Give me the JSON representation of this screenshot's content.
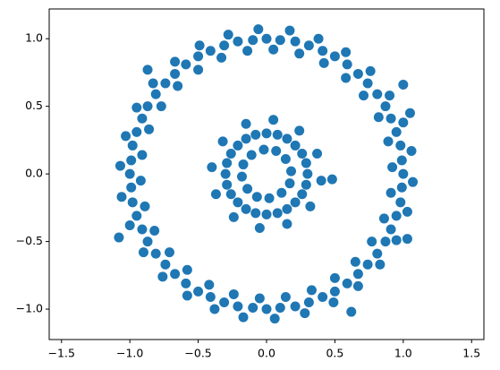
{
  "chart_data": {
    "type": "scatter",
    "color": "#1f77b4",
    "x": [
      1,
      0.99,
      0.98,
      0.95,
      0.91,
      0.87,
      0.81,
      0.74,
      0.67,
      0.59,
      0.5,
      0.41,
      0.31,
      0.21,
      0.1,
      0,
      -0.1,
      -0.21,
      -0.31,
      -0.41,
      -0.5,
      -0.59,
      -0.67,
      -0.74,
      -0.81,
      -0.87,
      -0.91,
      -0.95,
      -0.98,
      -0.99,
      -1,
      -0.99,
      -0.98,
      -0.95,
      -0.91,
      -0.87,
      -0.81,
      -0.74,
      -0.67,
      -0.59,
      -0.5,
      -0.41,
      -0.31,
      -0.21,
      -0.1,
      0,
      0.1,
      0.21,
      0.31,
      0.41,
      0.5,
      0.59,
      0.67,
      0.74,
      0.81,
      0.87,
      0.91,
      0.95,
      0.98,
      0.99,
      0.92,
      1.06,
      0.89,
      1.0,
      0.82,
      0.9,
      0.71,
      0.76,
      0.58,
      0.58,
      0.42,
      0.38,
      0.24,
      0.17,
      0.05,
      -0.06,
      -0.14,
      -0.28,
      -0.33,
      -0.49,
      -0.5,
      -0.67,
      -0.65,
      -0.83,
      -0.77,
      -0.95,
      -0.86,
      -1.03,
      -0.91,
      -1.07,
      -0.92,
      -1.06,
      -0.89,
      -1.0,
      -0.82,
      -0.9,
      -0.71,
      -0.76,
      -0.58,
      -0.58,
      -0.42,
      -0.38,
      -0.24,
      -0.17,
      -0.05,
      0.06,
      0.14,
      0.28,
      0.33,
      0.49,
      0.5,
      0.67,
      0.65,
      0.83,
      0.77,
      0.95,
      0.86,
      1.03,
      0.91,
      1.07,
      -1.08,
      1.0,
      0.62,
      1.03,
      -0.87,
      1.05,
      0.48,
      0.3,
      0.29,
      0.26,
      0.21,
      0.15,
      0.08,
      0,
      -0.08,
      -0.15,
      -0.21,
      -0.26,
      -0.29,
      -0.3,
      -0.29,
      -0.26,
      -0.21,
      -0.15,
      -0.08,
      0,
      0.08,
      0.15,
      0.21,
      0.26,
      0.29,
      0.18,
      0.37,
      0.14,
      0.24,
      0.07,
      0.05,
      -0.02,
      -0.15,
      -0.11,
      -0.32,
      -0.17,
      -0.4,
      -0.18,
      -0.37,
      -0.14,
      -0.24,
      -0.07,
      -0.05,
      0.02,
      0.15,
      0.11,
      0.32,
      0.17,
      0.4
    ],
    "y": [
      0,
      0.1,
      0.21,
      0.31,
      0.41,
      0.5,
      0.59,
      0.67,
      0.74,
      0.81,
      0.87,
      0.91,
      0.95,
      0.98,
      0.99,
      1,
      0.99,
      0.98,
      0.95,
      0.91,
      0.87,
      0.81,
      0.74,
      0.67,
      0.59,
      0.5,
      0.41,
      0.31,
      0.21,
      0.1,
      0,
      -0.1,
      -0.21,
      -0.31,
      -0.41,
      -0.5,
      -0.59,
      -0.67,
      -0.74,
      -0.81,
      -0.87,
      -0.91,
      -0.95,
      -0.98,
      -0.99,
      -1,
      -0.99,
      -0.98,
      -0.95,
      -0.91,
      -0.87,
      -0.81,
      -0.74,
      -0.67,
      -0.59,
      -0.5,
      -0.41,
      -0.31,
      -0.21,
      -0.1,
      0.05,
      0.17,
      0.24,
      0.38,
      0.42,
      0.58,
      0.58,
      0.76,
      0.71,
      0.9,
      0.82,
      1.0,
      0.89,
      1.06,
      0.92,
      1.07,
      0.91,
      1.03,
      0.86,
      0.95,
      0.77,
      0.83,
      0.65,
      0.67,
      0.5,
      0.49,
      0.33,
      0.28,
      0.14,
      0.06,
      -0.05,
      -0.17,
      -0.24,
      -0.38,
      -0.42,
      -0.58,
      -0.58,
      -0.76,
      -0.71,
      -0.9,
      -0.82,
      -1.0,
      -0.89,
      -1.06,
      -0.92,
      -1.07,
      -0.91,
      -1.03,
      -0.86,
      -0.95,
      -0.77,
      -0.83,
      -0.65,
      -0.67,
      -0.5,
      -0.49,
      -0.33,
      -0.28,
      -0.14,
      -0.06,
      -0.47,
      0.66,
      -1.02,
      -0.48,
      0.77,
      0.45,
      -0.04,
      0,
      0.08,
      0.15,
      0.21,
      0.26,
      0.29,
      0.3,
      0.29,
      0.26,
      0.21,
      0.15,
      0.08,
      0,
      -0.08,
      -0.15,
      -0.21,
      -0.26,
      -0.29,
      -0.3,
      -0.29,
      -0.26,
      -0.21,
      -0.15,
      -0.08,
      0.02,
      0.15,
      0.11,
      0.32,
      0.17,
      0.4,
      0.18,
      0.37,
      0.14,
      0.24,
      0.07,
      0.05,
      -0.02,
      -0.15,
      -0.11,
      -0.32,
      -0.17,
      -0.4,
      -0.18,
      -0.37,
      -0.14,
      -0.24,
      -0.07,
      -0.05
    ],
    "xlim": [
      -1.59,
      1.59
    ],
    "ylim": [
      -1.225,
      1.22
    ],
    "xticks": [
      {
        "value": -1.5,
        "label": "−1.5"
      },
      {
        "value": -1.0,
        "label": "−1.0"
      },
      {
        "value": -0.5,
        "label": "−0.5"
      },
      {
        "value": 0,
        "label": "0.0"
      },
      0.5,
      {
        "value": 1,
        "label": "1.0"
      },
      1.5
    ],
    "yticks": [
      {
        "value": -1.0,
        "label": "−1.0"
      },
      {
        "value": -0.5,
        "label": "−0.5"
      },
      {
        "value": 0,
        "label": "0.0"
      },
      0.5,
      {
        "value": 1,
        "label": "1.0"
      }
    ]
  }
}
